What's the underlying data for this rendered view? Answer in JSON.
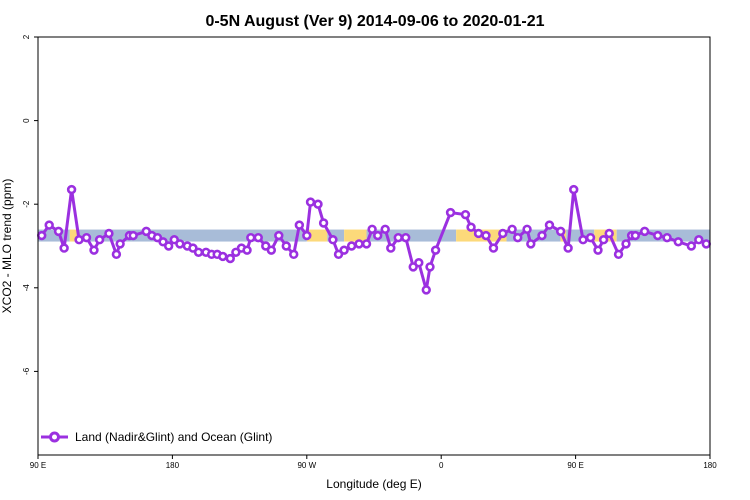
{
  "chart_data": {
    "type": "line",
    "title": "0-5N August (Ver 9)   2014-09-06 to 2020-01-21",
    "xlabel": "Longitude (deg E)",
    "ylabel": "XCO2 - MLO trend (ppm)",
    "xlim": [
      90,
      450
    ],
    "ylim": [
      -8,
      2
    ],
    "x_ticks": [
      {
        "value": 90,
        "label": "90 E"
      },
      {
        "value": 162,
        "label": "180"
      },
      {
        "value": 234,
        "label": "90 W"
      },
      {
        "value": 306,
        "label": "0"
      },
      {
        "value": 378,
        "label": "90 E"
      },
      {
        "value": 450,
        "label": "180"
      }
    ],
    "y_ticks": [
      {
        "value": 2,
        "label": "2"
      },
      {
        "value": 0,
        "label": "0"
      },
      {
        "value": -2,
        "label": "-2"
      },
      {
        "value": -4,
        "label": "-4"
      },
      {
        "value": -6,
        "label": "-6"
      }
    ],
    "grid": false,
    "legend_position": "bottom-left",
    "surface_band": {
      "y": -2.75,
      "segments": [
        {
          "type": "ocean",
          "x0": 90,
          "x1": 107
        },
        {
          "type": "land",
          "x0": 107,
          "x1": 112
        },
        {
          "type": "ocean",
          "x0": 112,
          "x1": 234
        },
        {
          "type": "land",
          "x0": 234,
          "x1": 245
        },
        {
          "type": "ocean",
          "x0": 245,
          "x1": 254
        },
        {
          "type": "land",
          "x0": 254,
          "x1": 266
        },
        {
          "type": "ocean",
          "x0": 266,
          "x1": 314
        },
        {
          "type": "land",
          "x0": 314,
          "x1": 341
        },
        {
          "type": "ocean",
          "x0": 341,
          "x1": 370
        },
        {
          "type": "land",
          "x0": 370,
          "x1": 373
        },
        {
          "type": "ocean",
          "x0": 373,
          "x1": 388
        },
        {
          "type": "land",
          "x0": 388,
          "x1": 400
        },
        {
          "type": "ocean",
          "x0": 400,
          "x1": 450
        }
      ],
      "colors": {
        "ocean": "#a8bcd8",
        "land": "#fcd97a"
      }
    },
    "series": [
      {
        "name": "Land (Nadir&Glint) and Ocean (Glint)",
        "color": "#9b30e0",
        "x": [
          92,
          96,
          101,
          104,
          108,
          112,
          116,
          120,
          123,
          128,
          132,
          134,
          139,
          141,
          148,
          151,
          154,
          157,
          160,
          163,
          166,
          170,
          173,
          176,
          180,
          183,
          186,
          189,
          193,
          196,
          199,
          202,
          204,
          208,
          212,
          215,
          219,
          223,
          227,
          230,
          234,
          236,
          240,
          243,
          248,
          251,
          254,
          258,
          262,
          266,
          269,
          272,
          276,
          279,
          283,
          287,
          291,
          294,
          298,
          300,
          303,
          311,
          319,
          322,
          326,
          330,
          334,
          339,
          344,
          347,
          352,
          354,
          360,
          364,
          370,
          374,
          377,
          382,
          386,
          390,
          393,
          396,
          401,
          405,
          408,
          410,
          415,
          422,
          427,
          433,
          440,
          444,
          448
        ],
        "y": [
          -2.75,
          -2.5,
          -2.65,
          -3.05,
          -1.65,
          -2.85,
          -2.8,
          -3.1,
          -2.85,
          -2.7,
          -3.2,
          -2.95,
          -2.75,
          -2.75,
          -2.65,
          -2.75,
          -2.8,
          -2.9,
          -3.0,
          -2.85,
          -2.95,
          -3.0,
          -3.05,
          -3.15,
          -3.15,
          -3.2,
          -3.2,
          -3.25,
          -3.3,
          -3.15,
          -3.05,
          -3.1,
          -2.8,
          -2.8,
          -3.0,
          -3.1,
          -2.75,
          -3.0,
          -3.2,
          -2.5,
          -2.75,
          -1.95,
          -2.0,
          -2.45,
          -2.85,
          -3.2,
          -3.1,
          -3.0,
          -2.95,
          -2.95,
          -2.6,
          -2.75,
          -2.6,
          -3.05,
          -2.8,
          -2.8,
          -3.5,
          -3.4,
          -4.05,
          -3.5,
          -3.1,
          -2.2,
          -2.25,
          -2.55,
          -2.7,
          -2.75,
          -3.05,
          -2.7,
          -2.6,
          -2.8,
          -2.6,
          -2.95,
          -2.75,
          -2.5,
          -2.65,
          -3.05,
          -1.65,
          -2.85,
          -2.8,
          -3.1,
          -2.85,
          -2.7,
          -3.2,
          -2.95,
          -2.75,
          -2.75,
          -2.65,
          -2.75,
          -2.8,
          -2.9,
          -3.0,
          -2.85,
          -2.95
        ]
      }
    ]
  }
}
